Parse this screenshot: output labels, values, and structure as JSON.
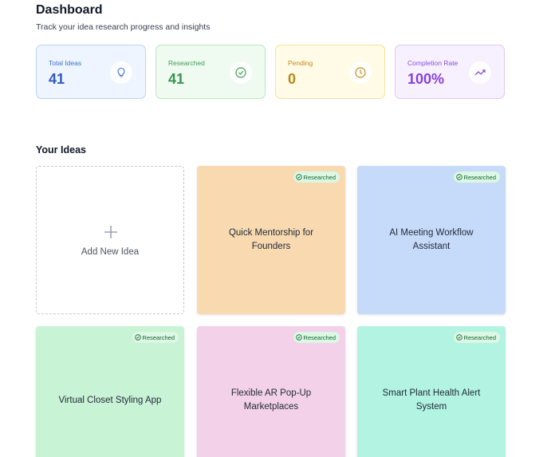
{
  "header": {
    "title": "Dashboard",
    "subtitle": "Track your idea research progress and insights"
  },
  "stats": [
    {
      "label": "Total Ideas",
      "value": "41"
    },
    {
      "label": "Researched",
      "value": "41"
    },
    {
      "label": "Pending",
      "value": "0"
    },
    {
      "label": "Completion Rate",
      "value": "100%"
    }
  ],
  "ideas_section": {
    "title": "Your Ideas",
    "add_label": "Add New Idea",
    "ideas": [
      {
        "title": "Quick Mentorship for Founders",
        "status": "Researched"
      },
      {
        "title": "AI Meeting Workflow Assistant",
        "status": "Researched"
      },
      {
        "title": "Virtual Closet Styling App",
        "status": "Researched"
      },
      {
        "title": "Flexible AR Pop-Up Marketplaces",
        "status": "Researched"
      },
      {
        "title": "Smart Plant Health Alert System",
        "status": "Researched"
      }
    ]
  }
}
